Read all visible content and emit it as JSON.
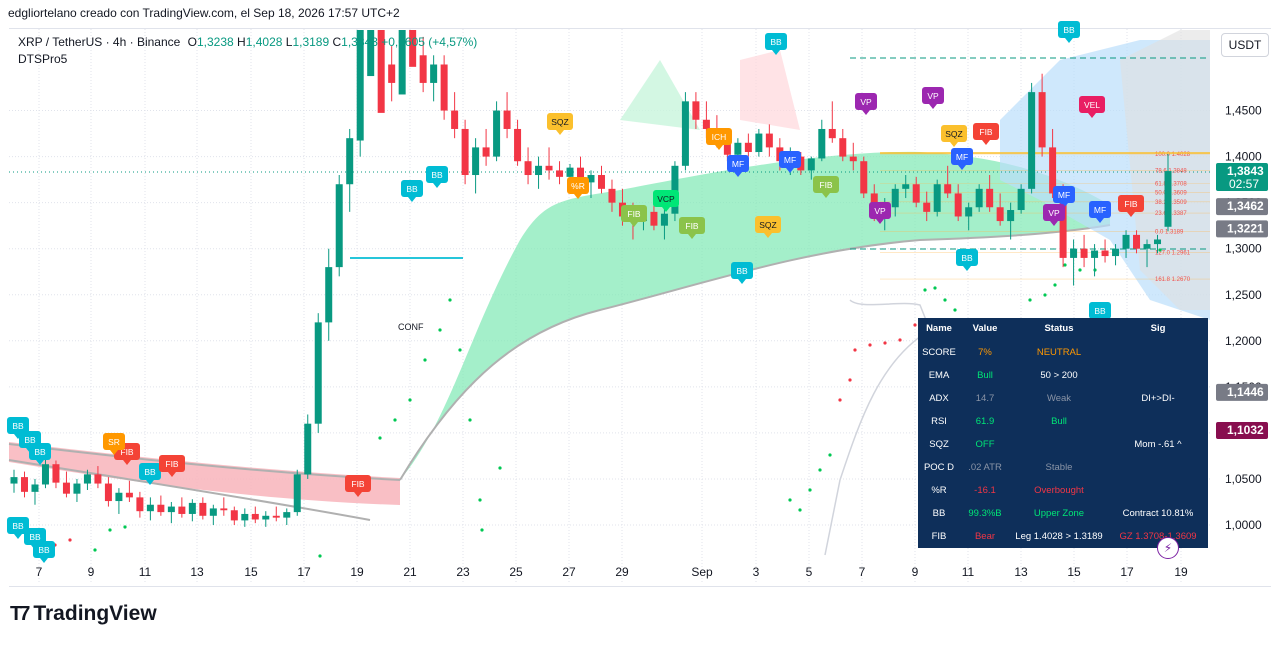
{
  "header": {
    "publisher_line": "edgliortelano creado con TradingView.com, el Sep 18, 2026 17:57 UTC+2"
  },
  "legend": {
    "symbol": "XRP / TetherUS · 4h · Binance",
    "o_label": "O",
    "o_value": "1,3238",
    "h_label": "H",
    "h_value": "1,4028",
    "l_label": "L",
    "l_value": "1,3189",
    "c_label": "C",
    "c_value": "1,3843",
    "change": "+0,0605 (+4,57%)",
    "indicator": "DTSPro5"
  },
  "currency_button": "USDT",
  "brand": {
    "name": "TradingView"
  },
  "colors": {
    "up": "#089981",
    "down": "#f23645",
    "ema_band": "#7ee8b4",
    "red_band": "#f8b4bb",
    "table_bg": "#0e2f5a",
    "current_price": "#089981"
  },
  "chart_data": {
    "type": "candlestick",
    "title": "",
    "xlabel": "",
    "ylabel": "",
    "x_ticks": [
      "7",
      "9",
      "11",
      "13",
      "15",
      "17",
      "19",
      "21",
      "23",
      "25",
      "27",
      "29",
      "Sep",
      "3",
      "5",
      "7",
      "9",
      "11",
      "13",
      "15",
      "17",
      "19"
    ],
    "y_ticks": [
      "1,0000",
      "1,0500",
      "1,1000",
      "1,1500",
      "1,2000",
      "1,2500",
      "1,3000",
      "1,3500",
      "1,4000",
      "1,4500"
    ],
    "ylim": [
      0.96,
      1.51
    ],
    "price_labels": [
      {
        "text": "1,3843",
        "sub": "02:57",
        "value": 1.3843,
        "bg": "#089981"
      },
      {
        "text": "1,3462",
        "value": 1.3462,
        "bg": "#787b86"
      },
      {
        "text": "1,3221",
        "value": 1.3221,
        "bg": "#787b86"
      },
      {
        "text": "1,1446",
        "value": 1.1446,
        "bg": "#787b86"
      },
      {
        "text": "1,1032",
        "value": 1.1032,
        "bg": "#880e4f"
      }
    ],
    "candles": [
      [
        1.045,
        1.06,
        1.035,
        1.052
      ],
      [
        1.052,
        1.058,
        1.03,
        1.036
      ],
      [
        1.036,
        1.05,
        1.022,
        1.044
      ],
      [
        1.044,
        1.072,
        1.04,
        1.066
      ],
      [
        1.066,
        1.07,
        1.04,
        1.046
      ],
      [
        1.046,
        1.058,
        1.03,
        1.034
      ],
      [
        1.034,
        1.05,
        1.025,
        1.045
      ],
      [
        1.045,
        1.06,
        1.038,
        1.055
      ],
      [
        1.055,
        1.064,
        1.04,
        1.045
      ],
      [
        1.045,
        1.052,
        1.02,
        1.026
      ],
      [
        1.026,
        1.04,
        1.012,
        1.035
      ],
      [
        1.035,
        1.048,
        1.025,
        1.03
      ],
      [
        1.03,
        1.036,
        1.008,
        1.015
      ],
      [
        1.015,
        1.03,
        1.005,
        1.022
      ],
      [
        1.022,
        1.032,
        1.01,
        1.014
      ],
      [
        1.014,
        1.025,
        1.002,
        1.02
      ],
      [
        1.02,
        1.03,
        1.008,
        1.012
      ],
      [
        1.012,
        1.028,
        1.004,
        1.024
      ],
      [
        1.024,
        1.03,
        1.006,
        1.01
      ],
      [
        1.01,
        1.022,
        1.0,
        1.018
      ],
      [
        1.018,
        1.03,
        1.01,
        1.016
      ],
      [
        1.016,
        1.02,
        1.0,
        1.005
      ],
      [
        1.005,
        1.018,
        0.998,
        1.012
      ],
      [
        1.012,
        1.02,
        1.002,
        1.006
      ],
      [
        1.006,
        1.015,
        0.998,
        1.01
      ],
      [
        1.01,
        1.02,
        1.004,
        1.008
      ],
      [
        1.008,
        1.018,
        1.0,
        1.014
      ],
      [
        1.014,
        1.06,
        1.01,
        1.055
      ],
      [
        1.055,
        1.12,
        1.05,
        1.11
      ],
      [
        1.11,
        1.23,
        1.1,
        1.22
      ],
      [
        1.22,
        1.3,
        1.2,
        1.28
      ],
      [
        1.28,
        1.38,
        1.27,
        1.37
      ],
      [
        1.37,
        1.43,
        1.34,
        1.42
      ],
      [
        1.42,
        1.56,
        1.4,
        1.54
      ],
      [
        1.54,
        1.62,
        1.5,
        1.59
      ],
      [
        1.59,
        1.6,
        1.48,
        1.5
      ],
      [
        1.5,
        1.52,
        1.46,
        1.48
      ],
      [
        1.48,
        1.56,
        1.47,
        1.55
      ],
      [
        1.55,
        1.57,
        1.5,
        1.51
      ],
      [
        1.51,
        1.53,
        1.47,
        1.48
      ],
      [
        1.48,
        1.51,
        1.46,
        1.5
      ],
      [
        1.5,
        1.51,
        1.44,
        1.45
      ],
      [
        1.45,
        1.47,
        1.42,
        1.43
      ],
      [
        1.43,
        1.44,
        1.37,
        1.38
      ],
      [
        1.38,
        1.42,
        1.36,
        1.41
      ],
      [
        1.41,
        1.43,
        1.39,
        1.4
      ],
      [
        1.4,
        1.46,
        1.395,
        1.45
      ],
      [
        1.45,
        1.47,
        1.42,
        1.43
      ],
      [
        1.43,
        1.44,
        1.39,
        1.395
      ],
      [
        1.395,
        1.41,
        1.37,
        1.38
      ],
      [
        1.38,
        1.4,
        1.365,
        1.39
      ],
      [
        1.39,
        1.41,
        1.375,
        1.385
      ],
      [
        1.385,
        1.395,
        1.37,
        1.378
      ],
      [
        1.378,
        1.392,
        1.368,
        1.388
      ],
      [
        1.388,
        1.4,
        1.37,
        1.372
      ],
      [
        1.372,
        1.385,
        1.355,
        1.38
      ],
      [
        1.38,
        1.39,
        1.36,
        1.365
      ],
      [
        1.365,
        1.375,
        1.34,
        1.35
      ],
      [
        1.35,
        1.365,
        1.325,
        1.335
      ],
      [
        1.335,
        1.35,
        1.31,
        1.33
      ],
      [
        1.33,
        1.345,
        1.32,
        1.34
      ],
      [
        1.34,
        1.35,
        1.32,
        1.325
      ],
      [
        1.325,
        1.345,
        1.31,
        1.338
      ],
      [
        1.338,
        1.395,
        1.33,
        1.39
      ],
      [
        1.39,
        1.47,
        1.385,
        1.46
      ],
      [
        1.46,
        1.47,
        1.43,
        1.44
      ],
      [
        1.44,
        1.46,
        1.42,
        1.43
      ],
      [
        1.43,
        1.445,
        1.41,
        1.42
      ],
      [
        1.42,
        1.43,
        1.395,
        1.402
      ],
      [
        1.402,
        1.42,
        1.395,
        1.415
      ],
      [
        1.415,
        1.425,
        1.4,
        1.405
      ],
      [
        1.405,
        1.43,
        1.4,
        1.425
      ],
      [
        1.425,
        1.435,
        1.4,
        1.41
      ],
      [
        1.41,
        1.42,
        1.385,
        1.395
      ],
      [
        1.395,
        1.41,
        1.38,
        1.4
      ],
      [
        1.4,
        1.405,
        1.38,
        1.385
      ],
      [
        1.385,
        1.4,
        1.375,
        1.398
      ],
      [
        1.398,
        1.44,
        1.395,
        1.43
      ],
      [
        1.43,
        1.46,
        1.415,
        1.42
      ],
      [
        1.42,
        1.43,
        1.395,
        1.4
      ],
      [
        1.4,
        1.415,
        1.385,
        1.395
      ],
      [
        1.395,
        1.4,
        1.355,
        1.36
      ],
      [
        1.36,
        1.37,
        1.33,
        1.34
      ],
      [
        1.34,
        1.355,
        1.32,
        1.345
      ],
      [
        1.345,
        1.37,
        1.335,
        1.365
      ],
      [
        1.365,
        1.38,
        1.355,
        1.37
      ],
      [
        1.37,
        1.378,
        1.345,
        1.35
      ],
      [
        1.35,
        1.362,
        1.33,
        1.34
      ],
      [
        1.34,
        1.375,
        1.335,
        1.37
      ],
      [
        1.37,
        1.39,
        1.355,
        1.36
      ],
      [
        1.36,
        1.37,
        1.33,
        1.335
      ],
      [
        1.335,
        1.35,
        1.32,
        1.345
      ],
      [
        1.345,
        1.37,
        1.34,
        1.365
      ],
      [
        1.365,
        1.38,
        1.34,
        1.345
      ],
      [
        1.345,
        1.36,
        1.325,
        1.33
      ],
      [
        1.33,
        1.35,
        1.31,
        1.342
      ],
      [
        1.342,
        1.37,
        1.338,
        1.365
      ],
      [
        1.365,
        1.48,
        1.36,
        1.47
      ],
      [
        1.47,
        1.49,
        1.4,
        1.41
      ],
      [
        1.41,
        1.43,
        1.355,
        1.36
      ],
      [
        1.36,
        1.37,
        1.28,
        1.29
      ],
      [
        1.29,
        1.31,
        1.26,
        1.3
      ],
      [
        1.3,
        1.315,
        1.28,
        1.29
      ],
      [
        1.29,
        1.305,
        1.27,
        1.298
      ],
      [
        1.298,
        1.31,
        1.285,
        1.292
      ],
      [
        1.292,
        1.305,
        1.282,
        1.3
      ],
      [
        1.3,
        1.32,
        1.29,
        1.315
      ],
      [
        1.315,
        1.32,
        1.295,
        1.3
      ],
      [
        1.3,
        1.31,
        1.28,
        1.305
      ],
      [
        1.305,
        1.315,
        1.295,
        1.31
      ],
      [
        1.3238,
        1.4028,
        1.3189,
        1.3843
      ]
    ],
    "markers": [
      {
        "text": "BB",
        "color": "#00bcd4",
        "x": 776,
        "y": 42
      },
      {
        "text": "BB",
        "color": "#00bcd4",
        "x": 1069,
        "y": 30
      },
      {
        "text": "VP",
        "color": "#9c27b0",
        "x": 866,
        "y": 102
      },
      {
        "text": "VP",
        "color": "#9c27b0",
        "x": 933,
        "y": 96
      },
      {
        "text": "VEL",
        "color": "#e91e63",
        "x": 1092,
        "y": 105
      },
      {
        "text": "SQZ",
        "color": "#fbc02d",
        "x": 560,
        "y": 122
      },
      {
        "text": "ICH",
        "color": "#ff9800",
        "x": 719,
        "y": 137
      },
      {
        "text": "SQZ",
        "color": "#fbc02d",
        "x": 954,
        "y": 134
      },
      {
        "text": "FIB",
        "color": "#f44336",
        "x": 986,
        "y": 132
      },
      {
        "text": "MF",
        "color": "#2962ff",
        "x": 738,
        "y": 164
      },
      {
        "text": "MF",
        "color": "#2962ff",
        "x": 790,
        "y": 160
      },
      {
        "text": "MF",
        "color": "#2962ff",
        "x": 962,
        "y": 157
      },
      {
        "text": "FIB",
        "color": "#8bc34a",
        "x": 826,
        "y": 185
      },
      {
        "text": "%R",
        "color": "#ff9800",
        "x": 578,
        "y": 186
      },
      {
        "text": "VCP",
        "color": "#00e676",
        "x": 666,
        "y": 199
      },
      {
        "text": "FIB",
        "color": "#8bc34a",
        "x": 634,
        "y": 214
      },
      {
        "text": "FIB",
        "color": "#8bc34a",
        "x": 692,
        "y": 226
      },
      {
        "text": "SQZ",
        "color": "#fbc02d",
        "x": 768,
        "y": 225
      },
      {
        "text": "VP",
        "color": "#9c27b0",
        "x": 880,
        "y": 211
      },
      {
        "text": "MF",
        "color": "#2962ff",
        "x": 1064,
        "y": 195
      },
      {
        "text": "VP",
        "color": "#9c27b0",
        "x": 1054,
        "y": 213
      },
      {
        "text": "MF",
        "color": "#2962ff",
        "x": 1100,
        "y": 210
      },
      {
        "text": "FIB",
        "color": "#f44336",
        "x": 1131,
        "y": 204
      },
      {
        "text": "BB",
        "color": "#00bcd4",
        "x": 412,
        "y": 189
      },
      {
        "text": "BB",
        "color": "#00bcd4",
        "x": 437,
        "y": 175
      },
      {
        "text": "BB",
        "color": "#00bcd4",
        "x": 742,
        "y": 271
      },
      {
        "text": "BB",
        "color": "#00bcd4",
        "x": 967,
        "y": 258
      },
      {
        "text": "BB",
        "color": "#00bcd4",
        "x": 1100,
        "y": 311
      },
      {
        "text": "BB",
        "color": "#00bcd4",
        "x": 18,
        "y": 426
      },
      {
        "text": "BB",
        "color": "#00bcd4",
        "x": 30,
        "y": 440
      },
      {
        "text": "BB",
        "color": "#00bcd4",
        "x": 40,
        "y": 452
      },
      {
        "text": "FIB",
        "color": "#f44336",
        "x": 127,
        "y": 452
      },
      {
        "text": "SR",
        "color": "#ff9800",
        "x": 114,
        "y": 442
      },
      {
        "text": "BB",
        "color": "#00bcd4",
        "x": 150,
        "y": 472
      },
      {
        "text": "FIB",
        "color": "#f44336",
        "x": 172,
        "y": 464
      },
      {
        "text": "FIB",
        "color": "#f44336",
        "x": 358,
        "y": 484
      },
      {
        "text": "BB",
        "color": "#00bcd4",
        "x": 18,
        "y": 526
      },
      {
        "text": "BB",
        "color": "#00bcd4",
        "x": 35,
        "y": 537
      },
      {
        "text": "BB",
        "color": "#00bcd4",
        "x": 44,
        "y": 550
      }
    ],
    "fib_levels": [
      {
        "label": "100.0  1.4028",
        "value": 1.4028
      },
      {
        "label": "78.6  1.3848",
        "value": 1.3848
      },
      {
        "label": "61.8  1.3708",
        "value": 1.3708
      },
      {
        "label": "50.0  1.3609",
        "value": 1.3609
      },
      {
        "label": "38.2  1.3509",
        "value": 1.3509
      },
      {
        "label": "23.6  1.3387",
        "value": 1.3387
      },
      {
        "label": "0.0  1.3189",
        "value": 1.3189
      },
      {
        "label": "127.0  1.2961",
        "value": 1.2961
      },
      {
        "label": "161.8  1.2670",
        "value": 1.267
      }
    ],
    "annotation": "CONF"
  },
  "table": {
    "headers": [
      "Name",
      "Value",
      "Status",
      "Sig"
    ],
    "rows": [
      {
        "name": "SCORE",
        "value": "7%",
        "value_color": "#ff9800",
        "status": "NEUTRAL",
        "status_color": "#ff9800",
        "sig": "",
        "sig_color": "#ffffff"
      },
      {
        "name": "EMA",
        "value": "Bull",
        "value_color": "#00e676",
        "status": "50 > 200",
        "status_color": "#ffffff",
        "sig": "",
        "sig_color": "#ffffff"
      },
      {
        "name": "ADX",
        "value": "14.7",
        "value_color": "#8a94a6",
        "status": "Weak",
        "status_color": "#8a94a6",
        "sig": "DI+>DI-",
        "sig_color": "#ffffff"
      },
      {
        "name": "RSI",
        "value": "61.9",
        "value_color": "#00e676",
        "status": "Bull",
        "status_color": "#00e676",
        "sig": "",
        "sig_color": "#ffffff"
      },
      {
        "name": "SQZ",
        "value": "OFF",
        "value_color": "#00e676",
        "status": "",
        "status_color": "#ffffff",
        "sig": "Mom -.61 ^",
        "sig_color": "#ffffff"
      },
      {
        "name": "POC D",
        "value": ".02 ATR",
        "value_color": "#8a94a6",
        "status": "Stable",
        "status_color": "#8a94a6",
        "sig": "",
        "sig_color": "#ffffff"
      },
      {
        "name": "%R",
        "value": "-16.1",
        "value_color": "#f23645",
        "status": "Overbought",
        "status_color": "#f23645",
        "sig": "",
        "sig_color": "#ffffff"
      },
      {
        "name": "BB",
        "value": "99.3%B",
        "value_color": "#00e676",
        "status": "Upper Zone",
        "status_color": "#00e676",
        "sig": "Contract 10.81%",
        "sig_color": "#ffffff"
      },
      {
        "name": "FIB",
        "value": "Bear",
        "value_color": "#f23645",
        "status": "Leg 1.4028 > 1.3189",
        "status_color": "#ffffff",
        "sig": "GZ 1.3708-1.3609",
        "sig_color": "#f23645"
      }
    ]
  }
}
